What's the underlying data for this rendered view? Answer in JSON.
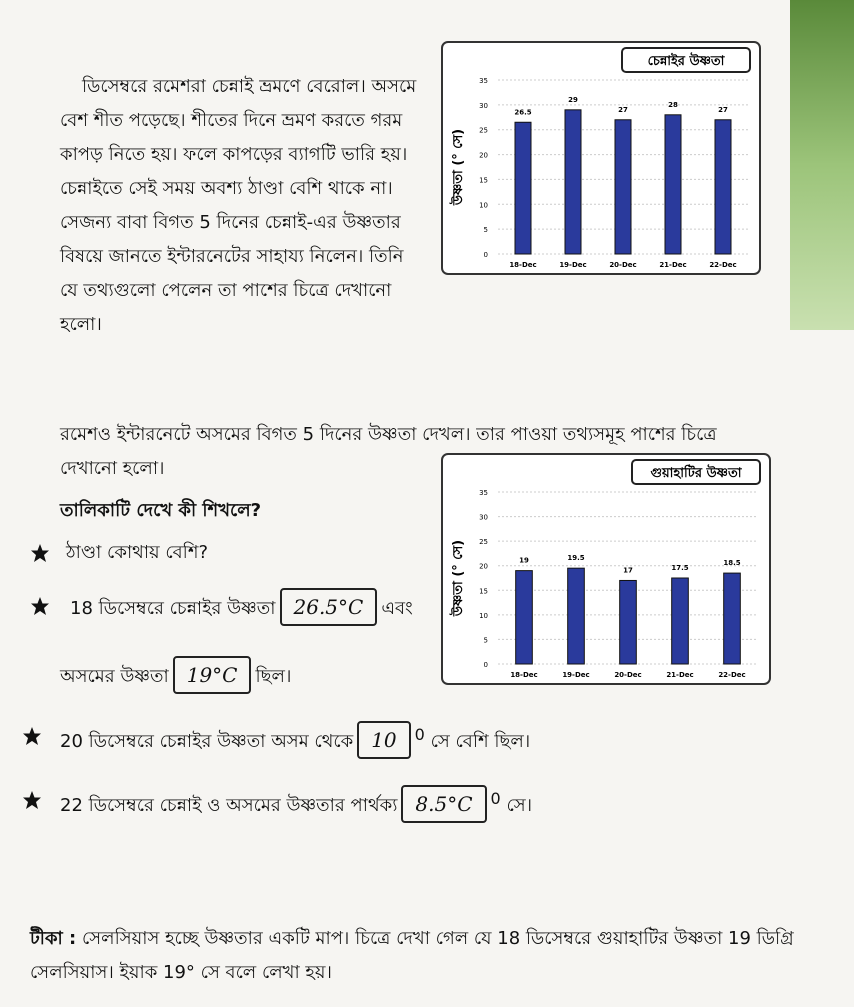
{
  "paragraphs": [
    "ডিসেম্বরে রমেশরা চেন্নাই ভ্রমণে বেরোল। অসমে বেশ শীত পড়েছে। শীতের দিনে ভ্রমণ করতে গরম কাপড় নিতে হয়। ফলে কাপড়ের ব্যাগটি ভারি হয়। চেন্নাইতে সেই সময় অবশ্য ঠাণ্ডা বেশি থাকে না। সেজন্য বাবা বিগত 5 দিনের চেন্নাই-এর উষ্ণতার বিষয়ে জানতে ইন্টারনেটের সাহায্য নিলেন। তিনি যে তথ্যগুলো পেলেন তা পাশের চিত্রে দেখানো হলো।",
    "রমেশও ইন্টারনেটে অসমের বিগত 5 দিনের উষ্ণতা দেখল। তার পাওয়া তথ্যসমূহ পাশের চিত্রে দেখানো হলো।"
  ],
  "question_heading": "তালিকাটি দেখে কী শিখলে?",
  "questions": [
    {
      "text": "ঠাণ্ডা কোথায় বেশি?"
    },
    {
      "text": "18 ডিসেম্বরে চেন্নাইর উষ্ণতা",
      "answer": "26.5°C",
      "after": "এবং"
    },
    {
      "text": "অসমের উষ্ণতা",
      "answer": "19°C",
      "after": "ছিল।"
    },
    {
      "text": "20 ডিসেম্বরে চেন্নাইর উষ্ণতা অসম থেকে",
      "answer": "10",
      "degree": "0",
      "after": "সে বেশি ছিল।"
    },
    {
      "text": "22 ডিসেম্বরে চেন্নাই ও অসমের উষ্ণতার পার্থক্য",
      "answer": "8.5°C",
      "degree": "0",
      "after": "সে।"
    }
  ],
  "note": {
    "label": "টীকা :",
    "text": "সেলসিয়াস হচ্ছে উষ্ণতার একটি মাপ। চিত্রে দেখা গেল যে 18 ডিসেম্বরে গুয়াহাটির উষ্ণতা 19 ডিগ্রি সেলসিয়াস। ইয়াক 19° সে বলে লেখা হয়।"
  },
  "charts": [
    {
      "type": "bar",
      "title": "চেন্নাইর উষ্ণতা",
      "y_label": "উষ্ণতা (° সে)",
      "categories": [
        "18-Dec",
        "19-Dec",
        "20-Dec",
        "21-Dec",
        "22-Dec"
      ],
      "values": [
        26.5,
        29,
        27,
        28,
        27
      ],
      "color": "#2a3a9c",
      "ylim": [
        0,
        35
      ],
      "yticks": [
        0,
        5,
        10,
        15,
        20,
        25,
        30,
        35
      ],
      "grid": true
    },
    {
      "type": "bar",
      "title": "গুয়াহাটির উষ্ণতা",
      "y_label": "উষ্ণতা (° সে)",
      "categories": [
        "18-Dec",
        "19-Dec",
        "20-Dec",
        "21-Dec",
        "22-Dec"
      ],
      "values": [
        19,
        19.5,
        17,
        17.5,
        18.5
      ],
      "color": "#2a3a9c",
      "ylim": [
        0,
        35
      ],
      "yticks": [
        0,
        5,
        10,
        15,
        20,
        25,
        30,
        35
      ],
      "grid": true
    }
  ]
}
